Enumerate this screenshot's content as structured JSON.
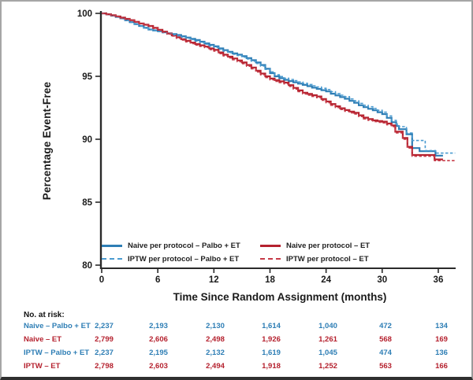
{
  "figure": {
    "background": "#ffffff",
    "accent_blue": "#2e7eb5",
    "accent_red": "#b5222f",
    "dashed_blue": "#4a9bd0",
    "dashed_red": "#c63a47"
  },
  "chart_data": {
    "type": "line",
    "subtype": "kaplan-meier-step",
    "title": "",
    "xlabel": "Time Since Random Assignment (months)",
    "ylabel": "Percentage Event-Free",
    "xlim": [
      0,
      38
    ],
    "ylim": [
      80,
      100
    ],
    "x_ticks": [
      0,
      6,
      12,
      18,
      24,
      30,
      36
    ],
    "y_ticks": [
      100,
      95,
      90,
      85,
      80
    ],
    "grid": false,
    "legend_position": "lower-left-inside",
    "series": [
      {
        "name": "Naive per protocol – Palbo + ET",
        "color": "#2e7eb5",
        "line": "solid",
        "points": [
          [
            0,
            100
          ],
          [
            0.5,
            99.92
          ],
          [
            1,
            99.82
          ],
          [
            1.5,
            99.72
          ],
          [
            2,
            99.6
          ],
          [
            2.5,
            99.45
          ],
          [
            3,
            99.3
          ],
          [
            3.5,
            99.15
          ],
          [
            4,
            99.0
          ],
          [
            4.5,
            98.85
          ],
          [
            5,
            98.72
          ],
          [
            5.5,
            98.65
          ],
          [
            6,
            98.58
          ],
          [
            6.5,
            98.5
          ],
          [
            7,
            98.42
          ],
          [
            7.5,
            98.35
          ],
          [
            8,
            98.28
          ],
          [
            8.5,
            98.18
          ],
          [
            9,
            98.08
          ],
          [
            9.5,
            97.98
          ],
          [
            10,
            97.88
          ],
          [
            10.5,
            97.75
          ],
          [
            11,
            97.62
          ],
          [
            11.5,
            97.5
          ],
          [
            12,
            97.38
          ],
          [
            12.5,
            97.22
          ],
          [
            13,
            97.08
          ],
          [
            13.5,
            96.95
          ],
          [
            14,
            96.82
          ],
          [
            14.5,
            96.72
          ],
          [
            15,
            96.6
          ],
          [
            15.5,
            96.45
          ],
          [
            16,
            96.28
          ],
          [
            16.5,
            96.1
          ],
          [
            17,
            95.9
          ],
          [
            17.5,
            95.6
          ],
          [
            18,
            95.25
          ],
          [
            18.5,
            95.0
          ],
          [
            19,
            94.85
          ],
          [
            19.5,
            94.72
          ],
          [
            20,
            94.62
          ],
          [
            20.5,
            94.52
          ],
          [
            21,
            94.42
          ],
          [
            21.5,
            94.32
          ],
          [
            22,
            94.22
          ],
          [
            22.5,
            94.1
          ],
          [
            23,
            94.0
          ],
          [
            23.5,
            93.9
          ],
          [
            24,
            93.8
          ],
          [
            24.5,
            93.62
          ],
          [
            25,
            93.48
          ],
          [
            25.5,
            93.35
          ],
          [
            26,
            93.22
          ],
          [
            26.5,
            93.05
          ],
          [
            27,
            92.9
          ],
          [
            27.5,
            92.7
          ],
          [
            28,
            92.55
          ],
          [
            28.5,
            92.42
          ],
          [
            29,
            92.3
          ],
          [
            29.5,
            92.15
          ],
          [
            30,
            92.0
          ],
          [
            30.5,
            91.7
          ],
          [
            31,
            91.35
          ],
          [
            31.5,
            91.05
          ],
          [
            31.8,
            90.8
          ],
          [
            32.6,
            90.4
          ],
          [
            33.2,
            89.3
          ],
          [
            34,
            89.05
          ],
          [
            35.7,
            88.7
          ],
          [
            36.5,
            88.7
          ]
        ]
      },
      {
        "name": "Naive per protocol – ET",
        "color": "#b5222f",
        "line": "solid",
        "points": [
          [
            0,
            100
          ],
          [
            0.5,
            99.93
          ],
          [
            1,
            99.85
          ],
          [
            1.5,
            99.76
          ],
          [
            2,
            99.66
          ],
          [
            2.5,
            99.56
          ],
          [
            3,
            99.46
          ],
          [
            3.5,
            99.33
          ],
          [
            4,
            99.2
          ],
          [
            4.5,
            99.1
          ],
          [
            5,
            99.0
          ],
          [
            5.5,
            98.85
          ],
          [
            6,
            98.7
          ],
          [
            6.5,
            98.55
          ],
          [
            7,
            98.4
          ],
          [
            7.5,
            98.25
          ],
          [
            8,
            98.1
          ],
          [
            8.5,
            97.95
          ],
          [
            9,
            97.82
          ],
          [
            9.5,
            97.68
          ],
          [
            10,
            97.56
          ],
          [
            10.5,
            97.46
          ],
          [
            11,
            97.36
          ],
          [
            11.5,
            97.22
          ],
          [
            12,
            97.1
          ],
          [
            12.5,
            96.9
          ],
          [
            13,
            96.72
          ],
          [
            13.5,
            96.56
          ],
          [
            14,
            96.42
          ],
          [
            14.5,
            96.26
          ],
          [
            15,
            96.1
          ],
          [
            15.5,
            95.9
          ],
          [
            16,
            95.7
          ],
          [
            16.5,
            95.45
          ],
          [
            17,
            95.22
          ],
          [
            17.5,
            95.0
          ],
          [
            18,
            94.82
          ],
          [
            18.5,
            94.7
          ],
          [
            19,
            94.6
          ],
          [
            19.5,
            94.5
          ],
          [
            20,
            94.3
          ],
          [
            20.5,
            94.08
          ],
          [
            21,
            93.88
          ],
          [
            21.5,
            93.7
          ],
          [
            22,
            93.6
          ],
          [
            22.5,
            93.5
          ],
          [
            23,
            93.4
          ],
          [
            23.5,
            93.2
          ],
          [
            24,
            93.0
          ],
          [
            24.5,
            92.8
          ],
          [
            25,
            92.62
          ],
          [
            25.5,
            92.46
          ],
          [
            26,
            92.32
          ],
          [
            26.5,
            92.2
          ],
          [
            27,
            92.1
          ],
          [
            27.5,
            91.9
          ],
          [
            28,
            91.72
          ],
          [
            28.5,
            91.6
          ],
          [
            29,
            91.5
          ],
          [
            29.5,
            91.45
          ],
          [
            30,
            91.4
          ],
          [
            30.5,
            91.25
          ],
          [
            31,
            91.1
          ],
          [
            31.4,
            90.6
          ],
          [
            32.2,
            90.1
          ],
          [
            32.7,
            89.4
          ],
          [
            33.2,
            88.75
          ],
          [
            35.6,
            88.4
          ],
          [
            36.5,
            88.4
          ]
        ]
      },
      {
        "name": "IPTW per protocol – Palbo + ET",
        "color": "#4a9bd0",
        "line": "dashed",
        "points": [
          [
            0,
            100
          ],
          [
            0.5,
            99.9
          ],
          [
            1,
            99.8
          ],
          [
            1.5,
            99.7
          ],
          [
            2,
            99.58
          ],
          [
            2.5,
            99.43
          ],
          [
            3,
            99.28
          ],
          [
            3.5,
            99.13
          ],
          [
            4,
            98.98
          ],
          [
            4.5,
            98.83
          ],
          [
            5,
            98.7
          ],
          [
            5.5,
            98.62
          ],
          [
            6,
            98.55
          ],
          [
            6.5,
            98.46
          ],
          [
            7,
            98.38
          ],
          [
            7.5,
            98.3
          ],
          [
            8,
            98.22
          ],
          [
            8.5,
            98.12
          ],
          [
            9,
            98.02
          ],
          [
            9.5,
            97.92
          ],
          [
            10,
            97.8
          ],
          [
            10.5,
            97.68
          ],
          [
            11,
            97.55
          ],
          [
            11.5,
            97.42
          ],
          [
            12,
            97.3
          ],
          [
            12.5,
            97.15
          ],
          [
            13,
            97.0
          ],
          [
            13.5,
            96.88
          ],
          [
            14,
            96.75
          ],
          [
            14.5,
            96.65
          ],
          [
            15,
            96.52
          ],
          [
            15.5,
            96.38
          ],
          [
            16,
            96.2
          ],
          [
            16.5,
            96.02
          ],
          [
            17,
            95.82
          ],
          [
            17.5,
            95.55
          ],
          [
            18,
            95.35
          ],
          [
            18.5,
            95.12
          ],
          [
            19,
            94.98
          ],
          [
            19.5,
            94.85
          ],
          [
            20,
            94.75
          ],
          [
            20.5,
            94.65
          ],
          [
            21,
            94.55
          ],
          [
            21.5,
            94.45
          ],
          [
            22,
            94.35
          ],
          [
            22.5,
            94.25
          ],
          [
            23,
            94.15
          ],
          [
            23.5,
            94.05
          ],
          [
            24,
            93.95
          ],
          [
            24.5,
            93.78
          ],
          [
            25,
            93.62
          ],
          [
            25.5,
            93.5
          ],
          [
            26,
            93.38
          ],
          [
            26.5,
            93.2
          ],
          [
            27,
            93.05
          ],
          [
            27.5,
            92.85
          ],
          [
            28,
            92.7
          ],
          [
            28.5,
            92.58
          ],
          [
            29,
            92.45
          ],
          [
            29.5,
            92.3
          ],
          [
            30,
            92.15
          ],
          [
            30.5,
            91.85
          ],
          [
            31,
            91.5
          ],
          [
            31.5,
            91.2
          ],
          [
            31.8,
            91.0
          ],
          [
            32.6,
            90.5
          ],
          [
            33.2,
            89.9
          ],
          [
            34.6,
            89.1
          ],
          [
            35.7,
            88.9
          ],
          [
            37.8,
            88.9
          ]
        ]
      },
      {
        "name": "IPTW per protocol – ET",
        "color": "#c63a47",
        "line": "dashed",
        "points": [
          [
            0,
            100
          ],
          [
            0.5,
            99.9
          ],
          [
            1,
            99.82
          ],
          [
            1.5,
            99.73
          ],
          [
            2,
            99.63
          ],
          [
            2.5,
            99.53
          ],
          [
            3,
            99.43
          ],
          [
            3.5,
            99.3
          ],
          [
            4,
            99.17
          ],
          [
            4.5,
            99.07
          ],
          [
            5,
            98.96
          ],
          [
            5.5,
            98.8
          ],
          [
            6,
            98.65
          ],
          [
            6.5,
            98.5
          ],
          [
            7,
            98.35
          ],
          [
            7.5,
            98.2
          ],
          [
            8,
            98.02
          ],
          [
            8.5,
            97.88
          ],
          [
            9,
            97.74
          ],
          [
            9.5,
            97.6
          ],
          [
            10,
            97.48
          ],
          [
            10.5,
            97.38
          ],
          [
            11,
            97.28
          ],
          [
            11.5,
            97.12
          ],
          [
            12,
            97.0
          ],
          [
            12.5,
            96.8
          ],
          [
            13,
            96.62
          ],
          [
            13.5,
            96.46
          ],
          [
            14,
            96.32
          ],
          [
            14.5,
            96.16
          ],
          [
            15,
            96.0
          ],
          [
            15.5,
            95.8
          ],
          [
            16,
            95.6
          ],
          [
            16.5,
            95.35
          ],
          [
            17,
            95.12
          ],
          [
            17.5,
            94.9
          ],
          [
            18,
            94.72
          ],
          [
            18.5,
            94.6
          ],
          [
            19,
            94.5
          ],
          [
            19.5,
            94.4
          ],
          [
            20,
            94.2
          ],
          [
            20.5,
            93.98
          ],
          [
            21,
            93.78
          ],
          [
            21.5,
            93.6
          ],
          [
            22,
            93.5
          ],
          [
            22.5,
            93.4
          ],
          [
            23,
            93.3
          ],
          [
            23.5,
            93.1
          ],
          [
            24,
            92.9
          ],
          [
            24.5,
            92.7
          ],
          [
            25,
            92.52
          ],
          [
            25.5,
            92.36
          ],
          [
            26,
            92.22
          ],
          [
            26.5,
            92.1
          ],
          [
            27,
            92.0
          ],
          [
            27.5,
            91.8
          ],
          [
            28,
            91.62
          ],
          [
            28.5,
            91.5
          ],
          [
            29,
            91.4
          ],
          [
            29.5,
            91.35
          ],
          [
            30,
            91.3
          ],
          [
            30.5,
            91.15
          ],
          [
            31,
            91.0
          ],
          [
            31.4,
            90.5
          ],
          [
            32.2,
            90.0
          ],
          [
            32.7,
            89.3
          ],
          [
            33.2,
            88.65
          ],
          [
            35.6,
            88.3
          ],
          [
            37.8,
            88.3
          ]
        ]
      }
    ]
  },
  "legend": {
    "items": [
      {
        "label": "Naive per protocol – Palbo + ET",
        "style": "solid",
        "color": "#2e7eb5"
      },
      {
        "label": "Naive per protocol – ET",
        "style": "solid",
        "color": "#b5222f"
      },
      {
        "label": "IPTW per protocol – Palbo + ET",
        "style": "dashed",
        "color": "#4a9bd0"
      },
      {
        "label": "IPTW per protocol – ET",
        "style": "dashed",
        "color": "#c63a47"
      }
    ]
  },
  "risk_table": {
    "title": "No. at risk:",
    "columns_months": [
      0,
      6,
      12,
      18,
      24,
      30,
      36
    ],
    "rows": [
      {
        "label": "Naive – Palbo + ET",
        "color": "#2e7eb5",
        "values": [
          "2,237",
          "2,193",
          "2,130",
          "1,614",
          "1,040",
          "472",
          "134"
        ]
      },
      {
        "label": "Naive – ET",
        "color": "#b5222f",
        "values": [
          "2,799",
          "2,606",
          "2,498",
          "1,926",
          "1,261",
          "568",
          "169"
        ]
      },
      {
        "label": "IPTW – Palbo + ET",
        "color": "#2e7eb5",
        "values": [
          "2,237",
          "2,195",
          "2,132",
          "1,619",
          "1,045",
          "474",
          "136"
        ]
      },
      {
        "label": "IPTW – ET",
        "color": "#b5222f",
        "values": [
          "2,798",
          "2,603",
          "2,494",
          "1,918",
          "1,252",
          "563",
          "166"
        ]
      }
    ]
  }
}
